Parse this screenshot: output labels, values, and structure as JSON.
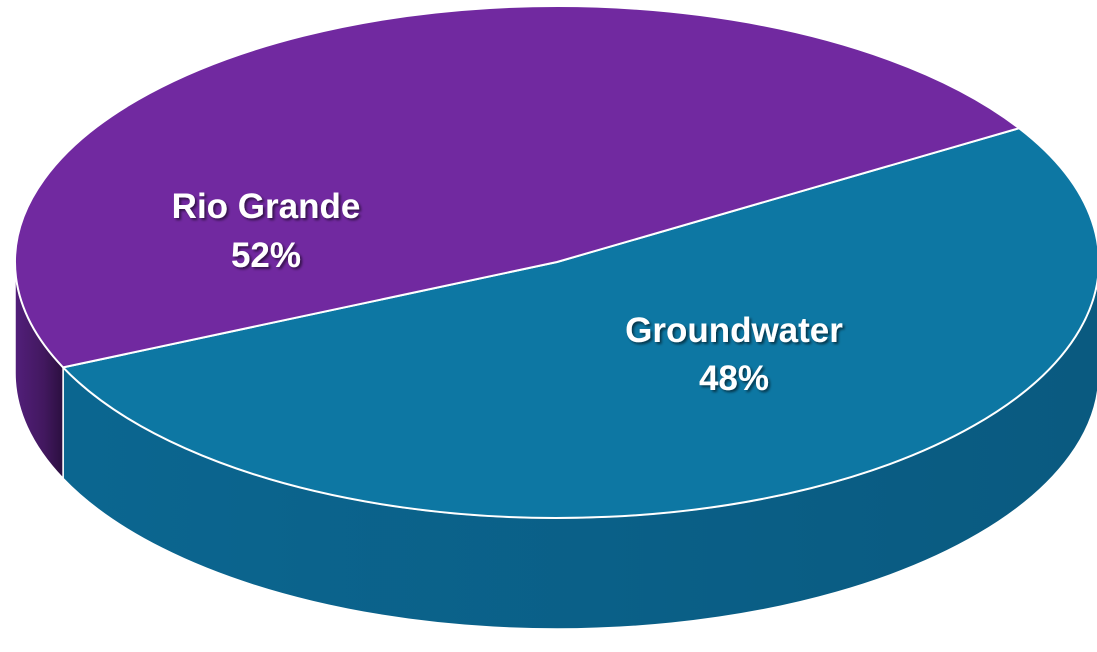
{
  "chart_data": {
    "type": "pie",
    "style": "3d",
    "slices": [
      {
        "name": "Rio Grande",
        "value": 52,
        "label": "52%",
        "color": "#0d77a3",
        "side_color": "#0a5f85"
      },
      {
        "name": "Groundwater",
        "value": 48,
        "label": "48%",
        "color": "#7129a0",
        "side_color": "#4a1c6e"
      }
    ]
  }
}
